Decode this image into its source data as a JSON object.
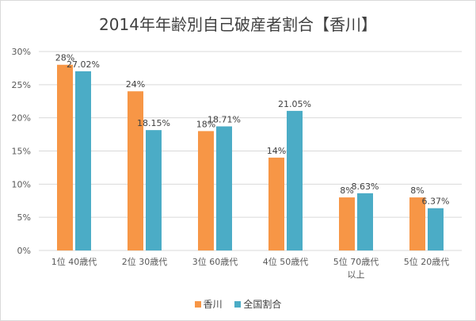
{
  "chart_data": {
    "type": "bar",
    "title": "2014年年齢別自己破産者割合【香川】",
    "categories": [
      [
        "1位 40歳代"
      ],
      [
        "2位 30歳代"
      ],
      [
        "3位 60歳代"
      ],
      [
        "4位 50歳代"
      ],
      [
        "5位 70歳代",
        "以上"
      ],
      [
        "5位 20歳代"
      ]
    ],
    "series": [
      {
        "name": "香川",
        "color": "#F79646",
        "values": [
          28,
          24,
          18,
          14,
          8,
          8
        ],
        "labels": [
          "28%",
          "24%",
          "18%",
          "14%",
          "8%",
          "8%"
        ]
      },
      {
        "name": "全国割合",
        "color": "#4BACC6",
        "values": [
          27.02,
          18.15,
          18.71,
          21.05,
          8.63,
          6.37
        ],
        "labels": [
          "27.02%",
          "18.15%",
          "18.71%",
          "21.05%",
          "8.63%",
          "6.37%"
        ]
      }
    ],
    "ylim": [
      0,
      30
    ],
    "yticks": [
      0,
      5,
      10,
      15,
      20,
      25,
      30
    ],
    "ytick_labels": [
      "0%",
      "5%",
      "10%",
      "15%",
      "20%",
      "25%",
      "30%"
    ],
    "grid": true,
    "legend_position": "bottom"
  }
}
